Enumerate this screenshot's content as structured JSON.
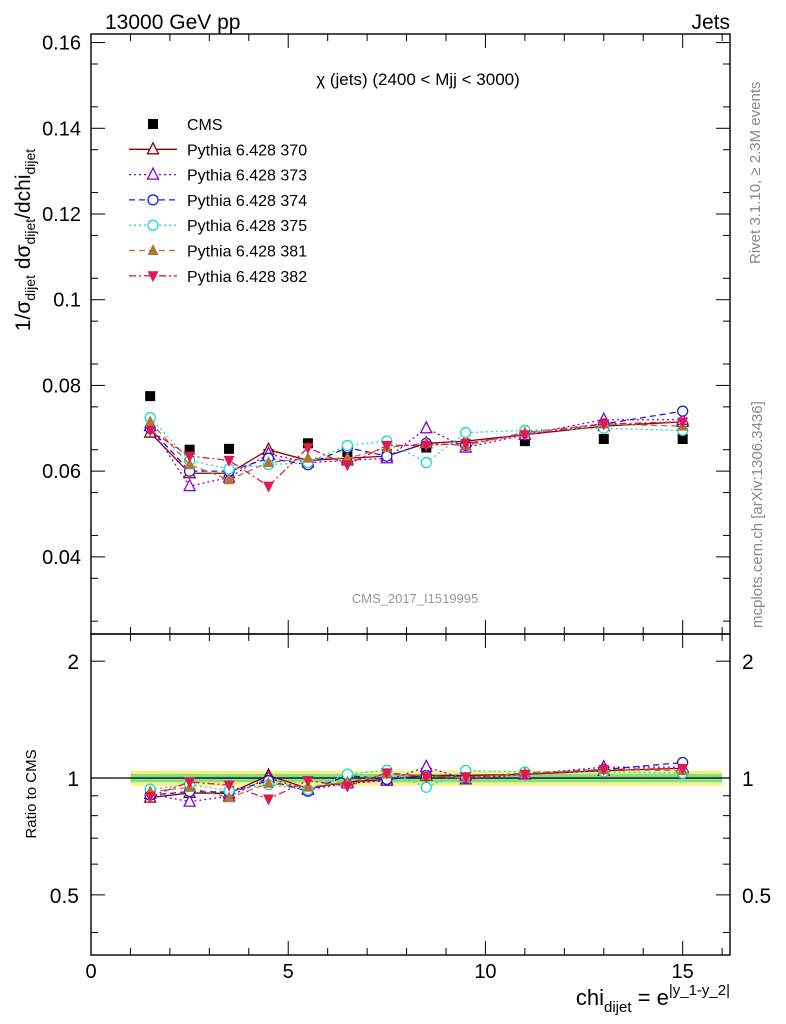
{
  "header": {
    "energy_label": "13000 GeV pp",
    "category_label": "Jets",
    "plot_title": "χ (jets) (2400 < Mjj < 3000)",
    "watermark": "CMS_2017_I1519995",
    "side_rivet": "Rivet 3.1.10, ≥ 2.3M events",
    "side_mcplots": "mcplots.cern.ch [arXiv:1306.3436]"
  },
  "axes": {
    "y_label_main": "1/σ",
    "y_label_main_sub": "dijet",
    "y_label_d": " dσ",
    "y_label_d_sub": "dijet",
    "y_label_den": "/dchi",
    "y_label_den_sub": "dijet",
    "y_label_ratio": "Ratio to CMS",
    "x_label": "chi",
    "x_label_sub": "dijet",
    "x_label_eq": " = e",
    "x_label_sup": "|y_1-y_2|",
    "x_ticks": [
      "0",
      "5",
      "10",
      "15"
    ],
    "y_ticks_main": [
      "0.04",
      "0.06",
      "0.08",
      "0.1",
      "0.12",
      "0.14",
      "0.16"
    ],
    "y_ticks_ratio": [
      "0.5",
      "1",
      "2"
    ]
  },
  "colors": {
    "cms": "#000000",
    "p370": "#8b0000",
    "p373": "#8a00c8",
    "p374": "#1a1adc",
    "p375": "#20d8c8",
    "p381": "#b07838",
    "p382": "#e0184c",
    "band_inner": "#88dd88",
    "band_outer": "#f4f484"
  },
  "chart_data": {
    "type": "line",
    "title": "χ (jets) (2400 < Mjj < 3000)",
    "xlabel": "chi_dijet = e^|y_1-y_2|",
    "ylabel": "1/σ_dijet dσ_dijet/dchi_dijet",
    "xlim": [
      0,
      16.2
    ],
    "ylim": [
      0.022,
      0.162
    ],
    "ratio_ylabel": "Ratio to CMS",
    "ratio_ylim": [
      0.35,
      2.35
    ],
    "x": [
      1.5,
      2.5,
      3.5,
      4.5,
      5.5,
      6.5,
      7.5,
      8.5,
      9.5,
      11.0,
      13.0,
      15.0
    ],
    "cms_band": {
      "inner_rel": 0.025,
      "outer_rel": 0.045,
      "x_range": [
        1.0,
        16.0
      ]
    },
    "series": [
      {
        "name": "CMS",
        "style": "data",
        "values": [
          0.0775,
          0.065,
          0.0652,
          0.064,
          0.0665,
          0.0645,
          0.064,
          0.0655,
          0.066,
          0.067,
          0.0675,
          0.0675
        ]
      },
      {
        "name": "Pythia 6.428 370",
        "style": "solid",
        "marker": "triangle-open",
        "values": [
          0.069,
          0.0595,
          0.0595,
          0.065,
          0.0625,
          0.063,
          0.0635,
          0.0665,
          0.067,
          0.0685,
          0.0705,
          0.0715
        ]
      },
      {
        "name": "Pythia 6.428 373",
        "style": "dotted",
        "marker": "triangle-open",
        "values": [
          0.0705,
          0.0565,
          0.0585,
          0.064,
          0.062,
          0.0625,
          0.063,
          0.07,
          0.0655,
          0.0685,
          0.072,
          0.072
        ]
      },
      {
        "name": "Pythia 6.428 374",
        "style": "dashed",
        "marker": "circle-open",
        "values": [
          0.07,
          0.06,
          0.06,
          0.063,
          0.0615,
          0.0655,
          0.0635,
          0.0665,
          0.066,
          0.069,
          0.071,
          0.074
        ]
      },
      {
        "name": "Pythia 6.428 375",
        "style": "dotted",
        "marker": "circle-open",
        "values": [
          0.0725,
          0.0625,
          0.0605,
          0.0615,
          0.062,
          0.066,
          0.067,
          0.062,
          0.069,
          0.0695,
          0.07,
          0.0695
        ]
      },
      {
        "name": "Pythia 6.428 381",
        "style": "dashed",
        "marker": "triangle-filled",
        "values": [
          0.0715,
          0.0615,
          0.058,
          0.062,
          0.063,
          0.063,
          0.0655,
          0.0665,
          0.066,
          0.069,
          0.071,
          0.0705
        ]
      },
      {
        "name": "Pythia 6.428 382",
        "style": "dashdot",
        "marker": "triangle-down-filled",
        "values": [
          0.0695,
          0.0635,
          0.0625,
          0.0565,
          0.0655,
          0.0615,
          0.066,
          0.066,
          0.0665,
          0.0685,
          0.071,
          0.0715
        ]
      }
    ]
  }
}
